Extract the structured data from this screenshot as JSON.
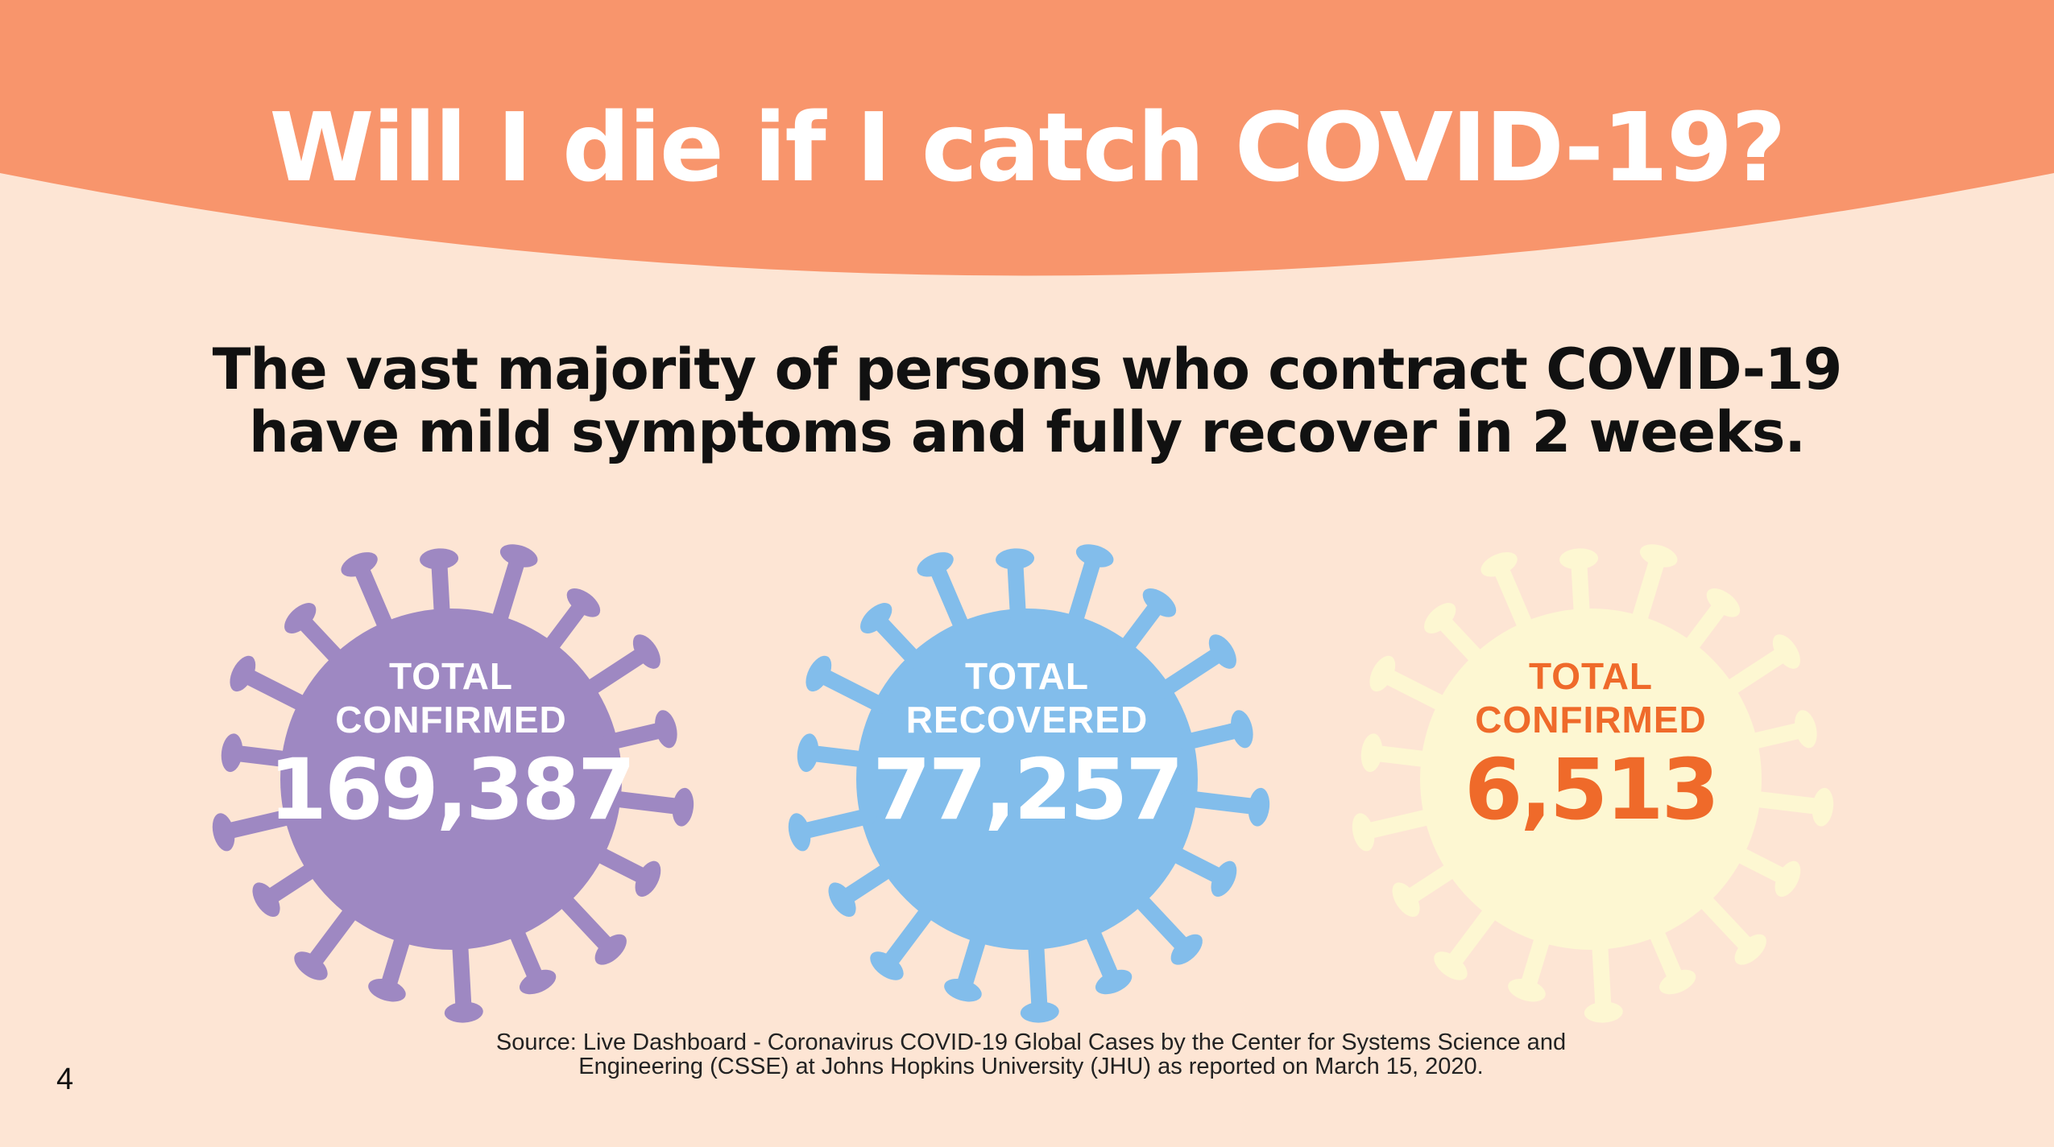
{
  "colors": {
    "background": "#fde5d4",
    "header": "#f8956c",
    "title": "#ffffff",
    "text": "#111111",
    "virus_confirmed": "#9e88c2",
    "virus_recovered": "#82bdeb",
    "virus_deaths": "#fdf7d2",
    "deaths_text": "#ef6a2a"
  },
  "title": "Will I die if I catch COVID-19?",
  "subtitle": {
    "line1": "The vast majority of persons who contract COVID-19",
    "line2": "have mild symptoms and fully recover in 2 weeks."
  },
  "stats": [
    {
      "label_line1": "TOTAL",
      "label_line2": "CONFIRMED",
      "value": "169,387",
      "icon": "virus-icon"
    },
    {
      "label_line1": "TOTAL",
      "label_line2": "RECOVERED",
      "value": "77,257",
      "icon": "virus-icon"
    },
    {
      "label_line1": "TOTAL",
      "label_line2": "CONFIRMED",
      "value": "6,513",
      "icon": "virus-icon"
    }
  ],
  "source": {
    "line1": "Source: Live Dashboard  - Coronavirus COVID-19 Global Cases by the Center for Systems Science and",
    "line2": "Engineering (CSSE) at Johns Hopkins University (JHU) as reported on March 15, 2020."
  },
  "page_number": "4"
}
